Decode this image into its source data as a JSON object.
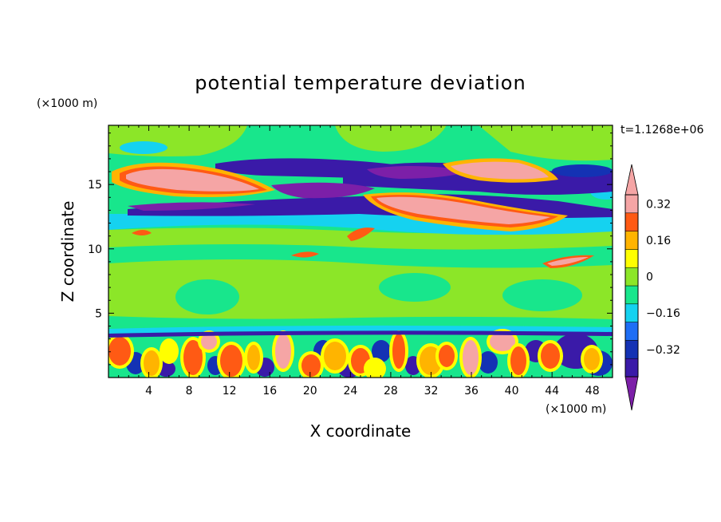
{
  "chart_data": {
    "type": "heatmap",
    "title": "potential temperature deviation",
    "xlabel": "X coordinate",
    "ylabel": "Z coordinate",
    "x_unit": "(×1000 m)",
    "y_unit": "(×1000 m)",
    "time_label": "t=1.1268e+06",
    "xlim": [
      0,
      50
    ],
    "ylim": [
      0,
      19.6
    ],
    "x_ticks": [
      4,
      8,
      12,
      16,
      20,
      24,
      28,
      32,
      36,
      40,
      44,
      48
    ],
    "x_tick_labels": [
      "4",
      "8",
      "12",
      "16",
      "20",
      "24",
      "28",
      "32",
      "36",
      "40",
      "44",
      "48"
    ],
    "y_ticks": [
      5,
      10,
      15
    ],
    "y_tick_labels": [
      "5",
      "10",
      "15"
    ],
    "colorbar": {
      "levels": [
        -0.4,
        -0.32,
        -0.24,
        -0.16,
        -0.08,
        0,
        0.08,
        0.16,
        0.24,
        0.32,
        0.4
      ],
      "tick_values": [
        -0.32,
        -0.16,
        0,
        0.16,
        0.32
      ],
      "tick_labels": [
        "−0.32",
        "−0.16",
        "0",
        "0.16",
        "0.32"
      ],
      "colors": [
        "#7c1fa8",
        "#3a1aa8",
        "#1432b4",
        "#1e6ef5",
        "#15d2f0",
        "#18e68c",
        "#8ce628",
        "#ffff00",
        "#ffb400",
        "#ff5a14",
        "#f5a5a5"
      ]
    },
    "background_level_color": "#18e68c"
  }
}
